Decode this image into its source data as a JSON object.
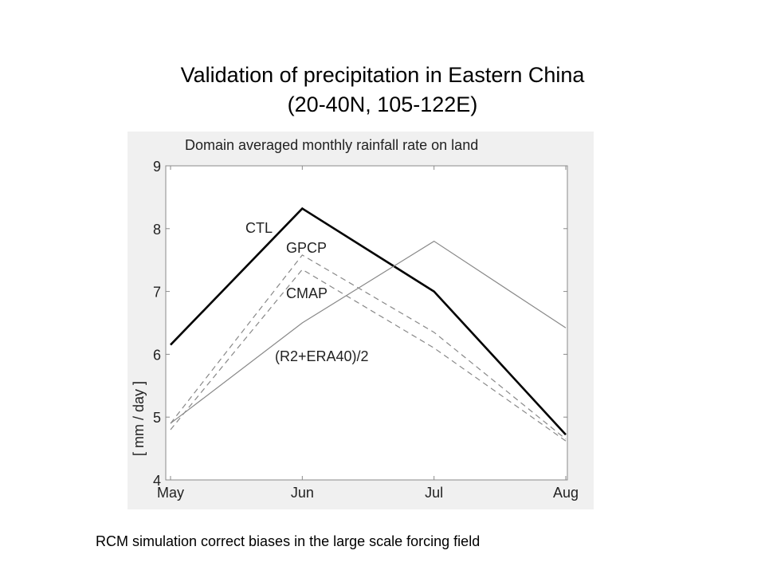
{
  "slide": {
    "title_line1": "Validation of precipitation in Eastern China",
    "title_line2": "(20-40N, 105-122E)",
    "caption": "RCM simulation correct biases in the large scale forcing field"
  },
  "chart_data": {
    "type": "line",
    "title": "Domain averaged monthly rainfall rate on land",
    "xlabel": "",
    "ylabel": "[ mm / day ]",
    "categories": [
      "May",
      "Jun",
      "Jul",
      "Aug"
    ],
    "ylim": [
      4,
      9
    ],
    "yticks": [
      4,
      5,
      6,
      7,
      8,
      9
    ],
    "grid": false,
    "series": [
      {
        "name": "CTL",
        "values": [
          6.15,
          8.32,
          7.0,
          4.72
        ],
        "color": "#000000",
        "style": "solid",
        "weight": "thick"
      },
      {
        "name": "GPCP",
        "values": [
          4.9,
          7.58,
          6.35,
          4.65
        ],
        "color": "#888888",
        "style": "dashed",
        "weight": "thin"
      },
      {
        "name": "CMAP",
        "values": [
          4.8,
          7.35,
          6.1,
          4.62
        ],
        "color": "#888888",
        "style": "dashed",
        "weight": "thin"
      },
      {
        "name": "(R2+ERA40)/2",
        "values": [
          4.9,
          6.5,
          7.8,
          6.42
        ],
        "color": "#888888",
        "style": "solid",
        "weight": "thin"
      }
    ]
  }
}
